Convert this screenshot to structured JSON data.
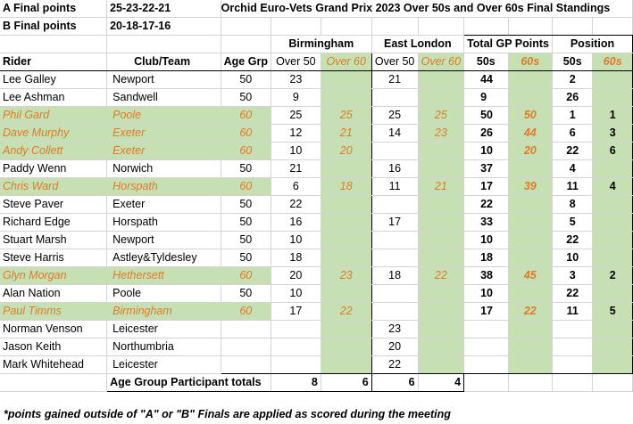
{
  "header": {
    "a_label": "A Final points",
    "a_scheme": "25-23-22-21",
    "b_label": "B Final points",
    "b_scheme": "20-18-17-16",
    "title": "Orchid Euro-Vets Grand Prix 2023 Over 50s and Over 60s Final Standings"
  },
  "groups": {
    "birmingham": "Birmingham",
    "east_london": "East London",
    "total": "Total GP Points",
    "position": "Position"
  },
  "columns": {
    "rider": "Rider",
    "club": "Club/Team",
    "age": "Age Grp",
    "bham50": "Over 50",
    "bham60": "Over 60",
    "el50": "Over 50",
    "el60": "Over 60",
    "tot50": "50s",
    "tot60": "60s",
    "pos50": "50s",
    "pos60": "60s"
  },
  "rows": [
    {
      "rider": "Lee Galley",
      "club": "Newport",
      "age": "50",
      "b50": "23",
      "b60": "",
      "e50": "21",
      "e60": "",
      "t50": "44",
      "t60": "",
      "p50": "2",
      "p60": "",
      "v60": false
    },
    {
      "rider": "Lee Ashman",
      "club": "Sandwell",
      "age": "50",
      "b50": "9",
      "b60": "",
      "e50": "",
      "e60": "",
      "t50": "9",
      "t60": "",
      "p50": "26",
      "p60": "",
      "v60": false
    },
    {
      "rider": "Phil Gard",
      "club": "Poole",
      "age": "60",
      "b50": "25",
      "b60": "25",
      "e50": "25",
      "e60": "25",
      "t50": "50",
      "t60": "50",
      "p50": "1",
      "p60": "1",
      "v60": true
    },
    {
      "rider": "Dave Murphy",
      "club": "Exeter",
      "age": "60",
      "b50": "12",
      "b60": "21",
      "e50": "14",
      "e60": "23",
      "t50": "26",
      "t60": "44",
      "p50": "6",
      "p60": "3",
      "v60": true
    },
    {
      "rider": "Andy Collett",
      "club": "Exeter",
      "age": "60",
      "b50": "10",
      "b60": "20",
      "e50": "",
      "e60": "",
      "t50": "10",
      "t60": "20",
      "p50": "22",
      "p60": "6",
      "v60": true
    },
    {
      "rider": "Paddy Wenn",
      "club": "Norwich",
      "age": "50",
      "b50": "21",
      "b60": "",
      "e50": "16",
      "e60": "",
      "t50": "37",
      "t60": "",
      "p50": "4",
      "p60": "",
      "v60": false
    },
    {
      "rider": "Chris Ward",
      "club": "Horspath",
      "age": "60",
      "b50": "6",
      "b60": "18",
      "e50": "11",
      "e60": "21",
      "t50": "17",
      "t60": "39",
      "p50": "11",
      "p60": "4",
      "v60": true
    },
    {
      "rider": "Steve Paver",
      "club": "Exeter",
      "age": "50",
      "b50": "22",
      "b60": "",
      "e50": "",
      "e60": "",
      "t50": "22",
      "t60": "",
      "p50": "8",
      "p60": "",
      "v60": false
    },
    {
      "rider": "Richard Edge",
      "club": "Horspath",
      "age": "50",
      "b50": "16",
      "b60": "",
      "e50": "17",
      "e60": "",
      "t50": "33",
      "t60": "",
      "p50": "5",
      "p60": "",
      "v60": false
    },
    {
      "rider": "Stuart Marsh",
      "club": "Newport",
      "age": "50",
      "b50": "10",
      "b60": "",
      "e50": "",
      "e60": "",
      "t50": "10",
      "t60": "",
      "p50": "22",
      "p60": "",
      "v60": false
    },
    {
      "rider": "Steve Harris",
      "club": "Astley&Tyldesley",
      "age": "50",
      "b50": "18",
      "b60": "",
      "e50": "",
      "e60": "",
      "t50": "18",
      "t60": "",
      "p50": "10",
      "p60": "",
      "v60": false
    },
    {
      "rider": "Glyn Morgan",
      "club": "Hethersett",
      "age": "60",
      "b50": "20",
      "b60": "23",
      "e50": "18",
      "e60": "22",
      "t50": "38",
      "t60": "45",
      "p50": "3",
      "p60": "2",
      "v60": true
    },
    {
      "rider": "Alan Nation",
      "club": "Poole",
      "age": "50",
      "b50": "10",
      "b60": "",
      "e50": "",
      "e60": "",
      "t50": "10",
      "t60": "",
      "p50": "22",
      "p60": "",
      "v60": false
    },
    {
      "rider": "Paul Timms",
      "club": "Birmingham",
      "age": "60",
      "b50": "17",
      "b60": "22",
      "e50": "",
      "e60": "",
      "t50": "17",
      "t60": "22",
      "p50": "11",
      "p60": "5",
      "v60": true
    },
    {
      "rider": "Norman Venson",
      "club": "Leicester",
      "age": "",
      "b50": "",
      "b60": "",
      "e50": "23",
      "e60": "",
      "t50": "",
      "t60": "",
      "p50": "",
      "p60": "",
      "v60": false
    },
    {
      "rider": "Jason Keith",
      "club": "Northumbria",
      "age": "",
      "b50": "",
      "b60": "",
      "e50": "20",
      "e60": "",
      "t50": "",
      "t60": "",
      "p50": "",
      "p60": "",
      "v60": false
    },
    {
      "rider": "Mark Whitehead",
      "club": "Leicester",
      "age": "",
      "b50": "",
      "b60": "",
      "e50": "22",
      "e60": "",
      "t50": "",
      "t60": "",
      "p50": "",
      "p60": "",
      "v60": false
    }
  ],
  "totals": {
    "label": "Age Group Participant totals",
    "b50": "8",
    "b60": "6",
    "e50": "6",
    "e60": "4"
  },
  "footnote": "*points gained outside of \"A\" or \"B\" Finals are applied as scored during the meeting",
  "colors": {
    "green_fill": "#c6e0b4",
    "orange_text": "#e07a28"
  }
}
